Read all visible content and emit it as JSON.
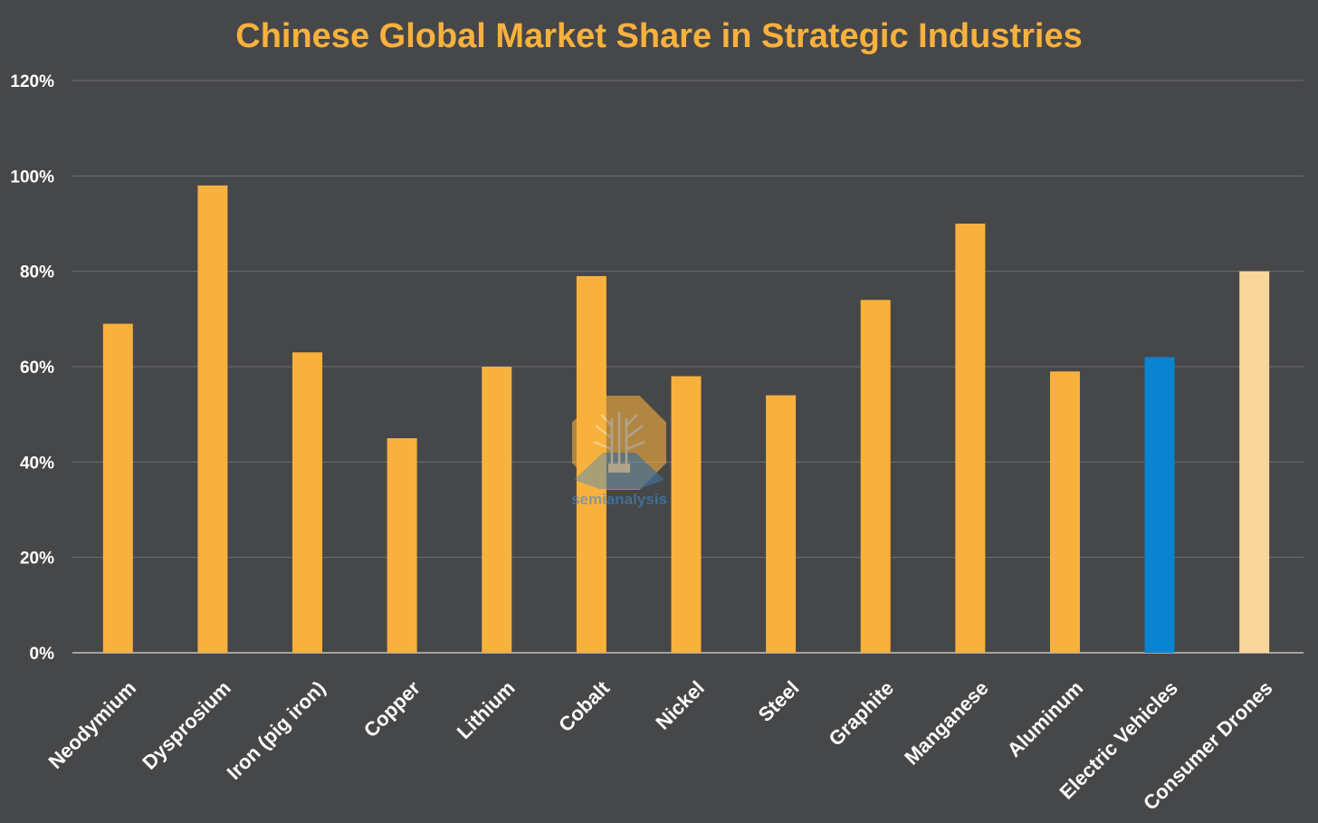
{
  "chart_data": {
    "type": "bar",
    "title": "Chinese Global Market Share in Strategic Industries",
    "xlabel": "",
    "ylabel": "",
    "ylim": [
      0,
      120
    ],
    "yticks": [
      0,
      20,
      40,
      60,
      80,
      100,
      120
    ],
    "ytick_labels": [
      "0%",
      "20%",
      "40%",
      "60%",
      "80%",
      "100%",
      "120%"
    ],
    "grid": true,
    "legend": "none",
    "categories": [
      "Neodymium",
      "Dysprosium",
      "Iron (pig iron)",
      "Copper",
      "Lithium",
      "Cobalt",
      "Nickel",
      "Steel",
      "Graphite",
      "Manganese",
      "Aluminum",
      "Electric Vehicles",
      "Consumer Drones"
    ],
    "values": [
      69,
      98,
      63,
      45,
      60,
      79,
      58,
      54,
      74,
      90,
      59,
      62,
      80
    ],
    "bar_colors": [
      "#f8b13d",
      "#f8b13d",
      "#f8b13d",
      "#f8b13d",
      "#f8b13d",
      "#f8b13d",
      "#f8b13d",
      "#f8b13d",
      "#f8b13d",
      "#f8b13d",
      "#f8b13d",
      "#0a84d0",
      "#f9d69b"
    ]
  },
  "colors": {
    "background": "#464749",
    "title": "#f8b13d",
    "gridline": "#6d6e70",
    "baseline": "#d9d9d9",
    "label": "#ffffff"
  },
  "watermark": {
    "icon": "semianalysis-logo-icon",
    "text": "semianalysis"
  }
}
